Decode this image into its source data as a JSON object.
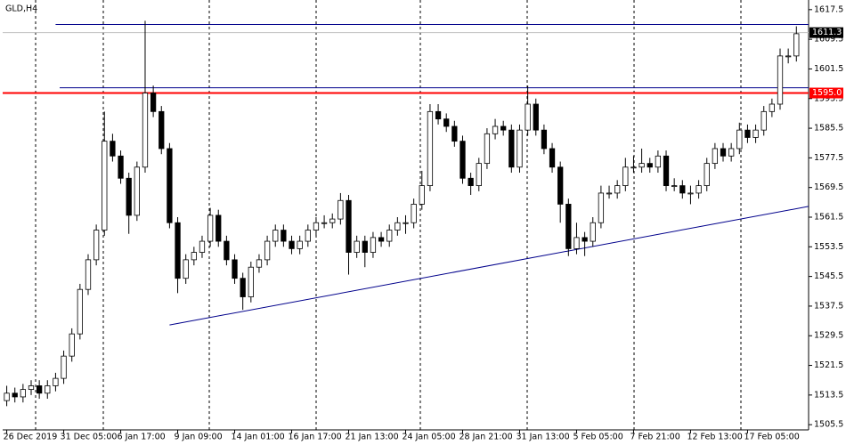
{
  "chart_data": {
    "type": "candlestick",
    "title": "GLD,H4",
    "categories": [
      "26 Dec 2019",
      null,
      null,
      null,
      null,
      null,
      null,
      "31 Dec 05:00",
      null,
      null,
      null,
      null,
      null,
      null,
      "6 Jan 17:00",
      null,
      null,
      null,
      null,
      null,
      null,
      "9 Jan 09:00",
      null,
      null,
      null,
      null,
      null,
      null,
      "14 Jan 01:00",
      null,
      null,
      null,
      null,
      null,
      null,
      "16 Jan 17:00",
      null,
      null,
      null,
      null,
      null,
      null,
      "21 Jan 13:00",
      null,
      null,
      null,
      null,
      null,
      null,
      "24 Jan 05:00",
      null,
      null,
      null,
      null,
      null,
      null,
      "28 Jan 21:00",
      null,
      null,
      null,
      null,
      null,
      null,
      "31 Jan 13:00",
      null,
      null,
      null,
      null,
      null,
      null,
      "5 Feb 05:00",
      null,
      null,
      null,
      null,
      null,
      null,
      "7 Feb 21:00",
      null,
      null,
      null,
      null,
      null,
      null,
      "12 Feb 13:00",
      null,
      null,
      null,
      null,
      null,
      null,
      "17 Feb 05:00",
      null,
      null,
      null,
      null,
      null,
      null
    ],
    "ohlc": [
      [
        1512,
        1516,
        1510.5,
        1514
      ],
      [
        1514,
        1515.5,
        1511.5,
        1513
      ],
      [
        1513,
        1516.5,
        1511.5,
        1515
      ],
      [
        1515,
        1517.5,
        1513.5,
        1516
      ],
      [
        1516,
        1517.5,
        1512.5,
        1514
      ],
      [
        1514,
        1517.5,
        1512.5,
        1516
      ],
      [
        1516,
        1519.5,
        1514.5,
        1518
      ],
      [
        1518,
        1525.5,
        1516.5,
        1524
      ],
      [
        1524,
        1531.5,
        1522.5,
        1530
      ],
      [
        1530,
        1543.5,
        1528.5,
        1542
      ],
      [
        1542,
        1551.5,
        1540.5,
        1550
      ],
      [
        1550,
        1559.5,
        1548.5,
        1558
      ],
      [
        1558,
        1590,
        1556.5,
        1582
      ],
      [
        1582,
        1584,
        1576.5,
        1578
      ],
      [
        1578,
        1579.5,
        1570.5,
        1572
      ],
      [
        1572,
        1573.5,
        1557,
        1562
      ],
      [
        1562,
        1576.5,
        1560.5,
        1575
      ],
      [
        1575,
        1614.5,
        1573.5,
        1595
      ],
      [
        1595,
        1597,
        1588.5,
        1590
      ],
      [
        1590,
        1591.5,
        1578.5,
        1580
      ],
      [
        1580,
        1581.5,
        1558.5,
        1560
      ],
      [
        1560,
        1561.5,
        1541,
        1545
      ],
      [
        1545,
        1551.5,
        1543.5,
        1550
      ],
      [
        1550,
        1553.5,
        1548.5,
        1552
      ],
      [
        1552,
        1556.5,
        1550.5,
        1555
      ],
      [
        1555,
        1564,
        1553.5,
        1562
      ],
      [
        1562,
        1563.5,
        1553.5,
        1555
      ],
      [
        1555,
        1556.5,
        1548.5,
        1550
      ],
      [
        1550,
        1551.5,
        1543.5,
        1545
      ],
      [
        1545,
        1546.5,
        1536.5,
        1540
      ],
      [
        1540,
        1549.5,
        1538.5,
        1548
      ],
      [
        1548,
        1551.5,
        1546.5,
        1550
      ],
      [
        1550,
        1556.5,
        1548.5,
        1555
      ],
      [
        1555,
        1559.5,
        1553.5,
        1558
      ],
      [
        1558,
        1559.5,
        1553.5,
        1555
      ],
      [
        1555,
        1556.5,
        1551.5,
        1553
      ],
      [
        1553,
        1556.5,
        1551.5,
        1555
      ],
      [
        1555,
        1559.5,
        1553.5,
        1558
      ],
      [
        1558,
        1561.5,
        1556.5,
        1560
      ],
      [
        1560,
        1562,
        1558.5,
        1560
      ],
      [
        1560,
        1562.5,
        1558.5,
        1561
      ],
      [
        1561,
        1568,
        1559.5,
        1566
      ],
      [
        1566,
        1567.5,
        1546,
        1552
      ],
      [
        1552,
        1556.5,
        1550.5,
        1555
      ],
      [
        1555,
        1556.5,
        1548,
        1552
      ],
      [
        1552,
        1557.5,
        1550.5,
        1556
      ],
      [
        1556,
        1557.5,
        1553.5,
        1555
      ],
      [
        1555,
        1559.5,
        1553.5,
        1558
      ],
      [
        1558,
        1561.5,
        1556.5,
        1560
      ],
      [
        1560,
        1562,
        1557,
        1560
      ],
      [
        1560,
        1566.5,
        1558.5,
        1565
      ],
      [
        1565,
        1574,
        1563.5,
        1570
      ],
      [
        1570,
        1592,
        1568.5,
        1590
      ],
      [
        1590,
        1592,
        1586.5,
        1588
      ],
      [
        1588,
        1589.5,
        1584.5,
        1586
      ],
      [
        1586,
        1587.5,
        1580.5,
        1582
      ],
      [
        1582,
        1583.5,
        1570.5,
        1572
      ],
      [
        1572,
        1573.5,
        1567.5,
        1570
      ],
      [
        1570,
        1577.5,
        1568.5,
        1576
      ],
      [
        1576,
        1585.5,
        1574.5,
        1584
      ],
      [
        1584,
        1588,
        1582.5,
        1586
      ],
      [
        1586,
        1587.5,
        1583.5,
        1585
      ],
      [
        1585,
        1586.5,
        1573.5,
        1575
      ],
      [
        1575,
        1586.5,
        1573.5,
        1585
      ],
      [
        1585,
        1597,
        1583.5,
        1592
      ],
      [
        1592,
        1593.5,
        1583.5,
        1585
      ],
      [
        1585,
        1586.5,
        1578.5,
        1580
      ],
      [
        1580,
        1581.5,
        1573.5,
        1575
      ],
      [
        1575,
        1576.5,
        1560,
        1565
      ],
      [
        1565,
        1566.5,
        1551,
        1553
      ],
      [
        1553,
        1560,
        1551.5,
        1556
      ],
      [
        1556,
        1557.5,
        1551,
        1555
      ],
      [
        1555,
        1561.5,
        1553.5,
        1560
      ],
      [
        1560,
        1570,
        1558.5,
        1568
      ],
      [
        1568,
        1570,
        1566.5,
        1568
      ],
      [
        1568,
        1571.5,
        1566.5,
        1570
      ],
      [
        1570,
        1577.5,
        1568.5,
        1575
      ],
      [
        1575,
        1578,
        1573.5,
        1575
      ],
      [
        1575,
        1580,
        1573.5,
        1576
      ],
      [
        1576,
        1577.5,
        1573.5,
        1575
      ],
      [
        1575,
        1579.5,
        1573.5,
        1578
      ],
      [
        1578,
        1579.5,
        1568.5,
        1570
      ],
      [
        1570,
        1572,
        1568.5,
        1570
      ],
      [
        1570,
        1571.5,
        1566.5,
        1568
      ],
      [
        1568,
        1570,
        1565,
        1568
      ],
      [
        1568,
        1571.5,
        1566.5,
        1570
      ],
      [
        1570,
        1577.5,
        1568.5,
        1576
      ],
      [
        1576,
        1581.5,
        1574.5,
        1580
      ],
      [
        1580,
        1581.5,
        1576.5,
        1578
      ],
      [
        1578,
        1581.5,
        1576.5,
        1580
      ],
      [
        1580,
        1587,
        1578.5,
        1585
      ],
      [
        1585,
        1586.5,
        1581.5,
        1583
      ],
      [
        1583,
        1586.5,
        1581.5,
        1585
      ],
      [
        1585,
        1591.5,
        1583.5,
        1590
      ],
      [
        1590,
        1593.5,
        1588.5,
        1592
      ],
      [
        1592,
        1607,
        1590.5,
        1605
      ],
      [
        1605,
        1607,
        1603,
        1605
      ],
      [
        1605,
        1613,
        1603.5,
        1611
      ]
    ],
    "ylim": [
      1504.1,
      1620.1
    ],
    "yticks": [
      1505.5,
      1513.5,
      1521.5,
      1529.5,
      1537.5,
      1545.5,
      1553.5,
      1561.5,
      1569.5,
      1577.5,
      1585.5,
      1593.5,
      1601.5,
      1609.5,
      1617.5
    ],
    "hlines": [
      {
        "value": 1613.5,
        "start": 6,
        "color": "#00008b"
      },
      {
        "value": 1596.4,
        "start": 6.5,
        "color": "#00008b"
      }
    ],
    "level": {
      "value": 1595,
      "label": "1595.0",
      "color": "#ff0000"
    },
    "price_line": {
      "value": 1611.3,
      "color": "#000000"
    },
    "trendline": {
      "start": [
        20,
        1532.4
      ],
      "end": [
        98.5,
        1564.4
      ],
      "color": "#00008b"
    }
  }
}
